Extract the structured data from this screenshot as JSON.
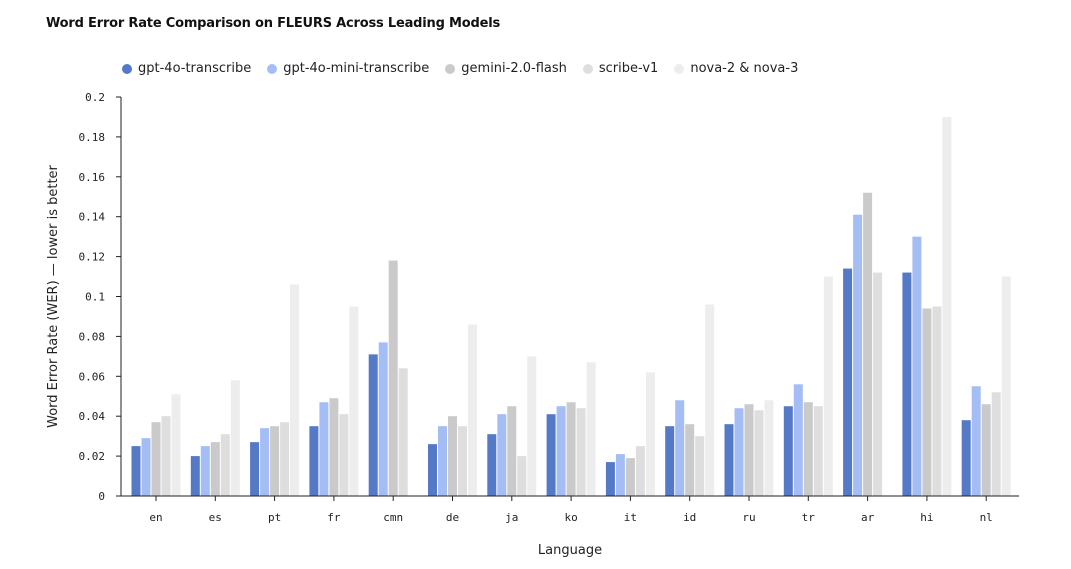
{
  "chart_data": {
    "type": "bar",
    "title": "Word Error Rate Comparison on FLEURS Across Leading Models",
    "xlabel": "Language",
    "ylabel": "Word Error Rate (WER) — lower is better",
    "ylim": [
      0,
      0.2
    ],
    "yticks": [
      "0",
      "0.02",
      "0.04",
      "0.06",
      "0.08",
      "0.1",
      "0.12",
      "0.14",
      "0.16",
      "0.18",
      "0.2"
    ],
    "grid": false,
    "legend_position": "top-left",
    "categories": [
      "en",
      "es",
      "pt",
      "fr",
      "cmn",
      "de",
      "ja",
      "ko",
      "it",
      "id",
      "ru",
      "tr",
      "ar",
      "hi",
      "nl"
    ],
    "series": [
      {
        "name": "gpt-4o-transcribe",
        "color": "#5479C6",
        "values": [
          0.025,
          0.02,
          0.027,
          0.035,
          0.071,
          0.026,
          0.031,
          0.041,
          0.017,
          0.035,
          0.036,
          0.045,
          0.114,
          0.112,
          0.038
        ]
      },
      {
        "name": "gpt-4o-mini-transcribe",
        "color": "#A4BDF5",
        "values": [
          0.029,
          0.025,
          0.034,
          0.047,
          0.077,
          0.035,
          0.041,
          0.045,
          0.021,
          0.048,
          0.044,
          0.056,
          0.141,
          0.13,
          0.055
        ]
      },
      {
        "name": "gemini-2.0-flash",
        "color": "#CACACA",
        "values": [
          0.037,
          0.027,
          0.035,
          0.049,
          0.118,
          0.04,
          0.045,
          0.047,
          0.019,
          0.036,
          0.046,
          0.047,
          0.152,
          0.094,
          0.046
        ]
      },
      {
        "name": "scribe-v1",
        "color": "#DEDEDE",
        "values": [
          0.04,
          0.031,
          0.037,
          0.041,
          0.064,
          0.035,
          0.02,
          0.044,
          0.025,
          0.03,
          0.043,
          0.045,
          0.112,
          0.095,
          0.052
        ]
      },
      {
        "name": "nova-2 & nova-3",
        "color": "#EDEDED",
        "values": [
          0.051,
          0.058,
          0.106,
          0.095,
          null,
          0.086,
          0.07,
          0.067,
          0.062,
          0.096,
          0.048,
          0.11,
          null,
          0.19,
          0.11
        ]
      }
    ]
  }
}
